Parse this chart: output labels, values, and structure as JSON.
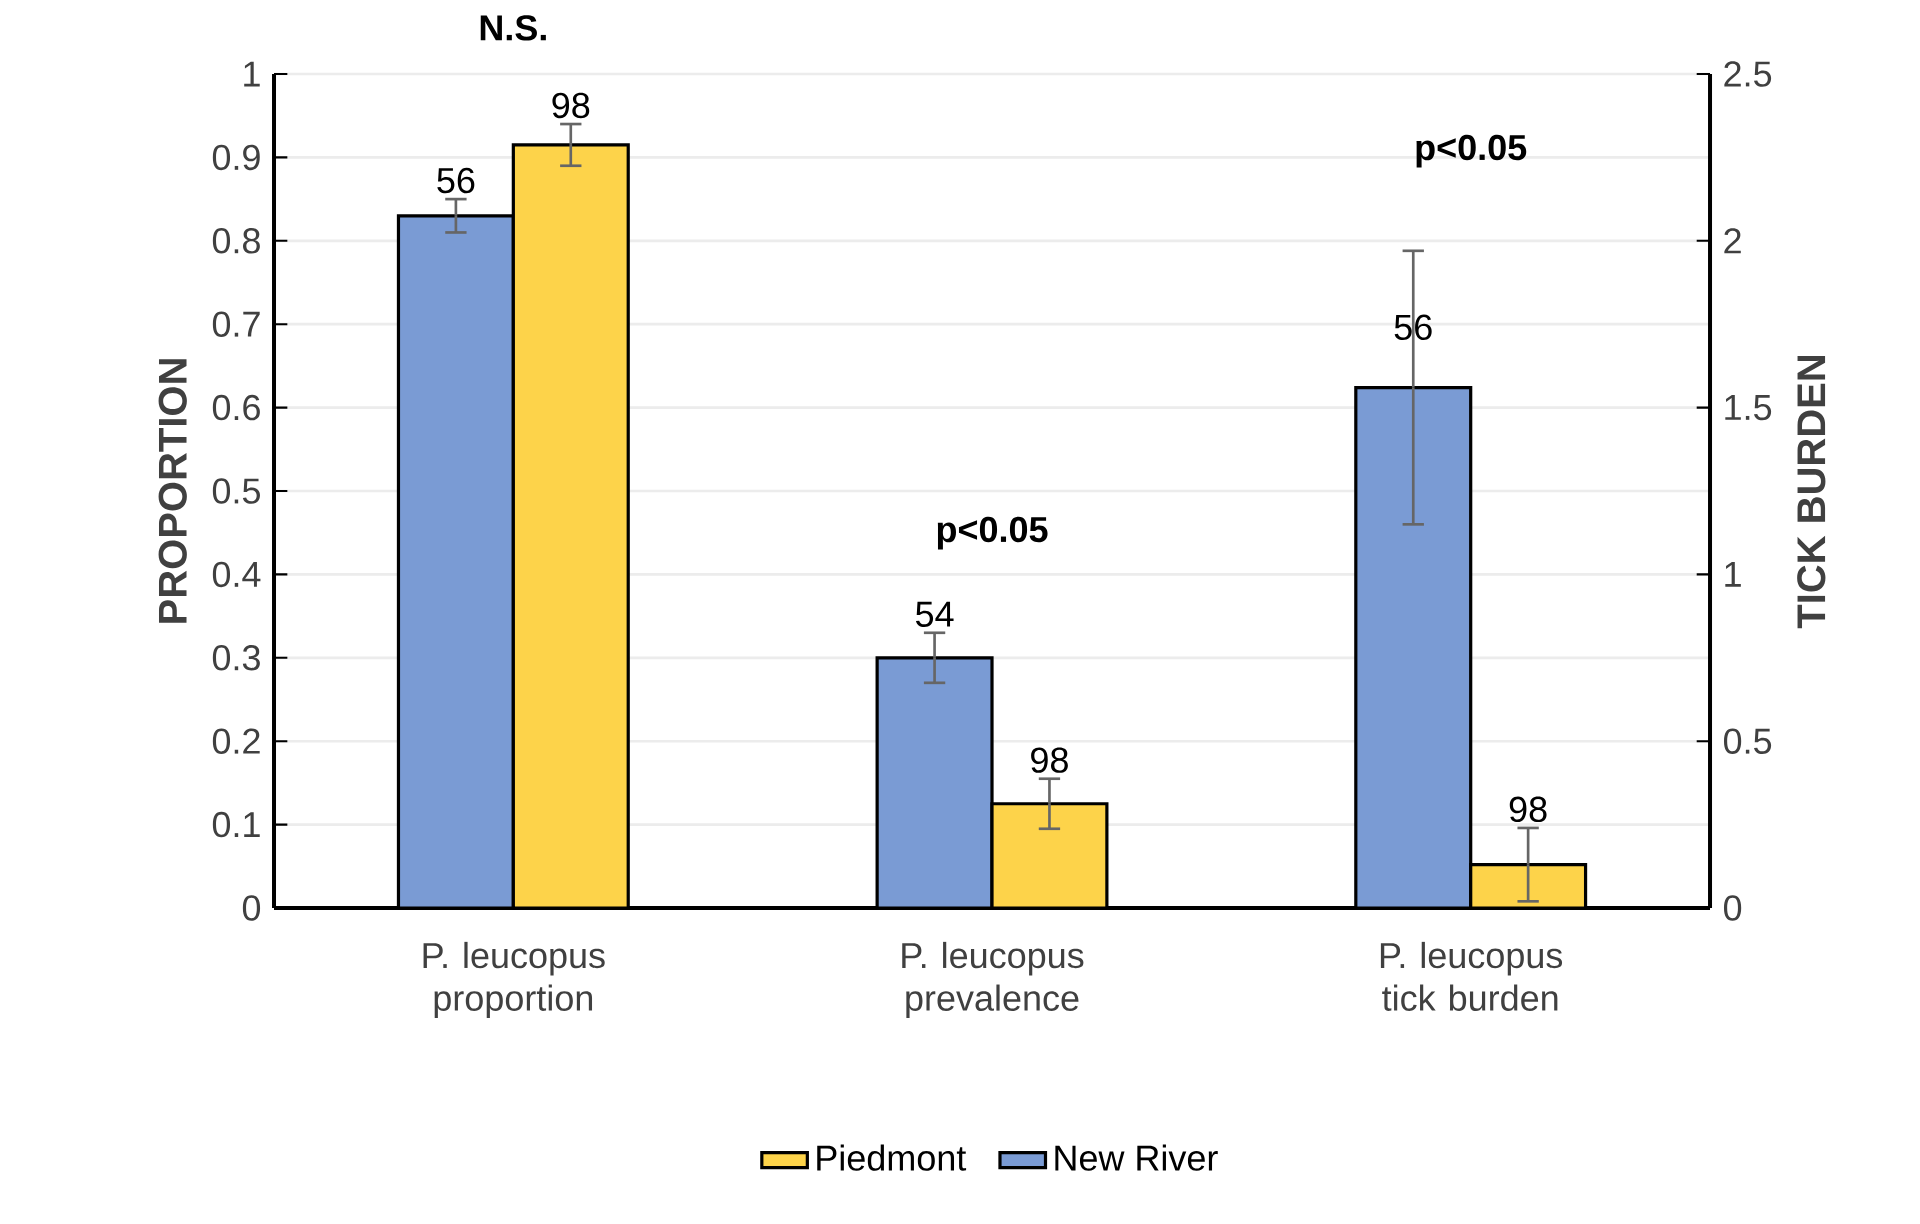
{
  "chart_data": {
    "type": "bar",
    "ylabel": "PROPORTION",
    "y2label": "TICK BURDEN",
    "categories": [
      "P. leucopus proportion",
      "P. leucopus prevalence",
      "P. leucopus tick burden"
    ],
    "series": [
      {
        "name": "New River",
        "color": "#7a9bd4",
        "values": [
          0.83,
          0.3,
          null
        ],
        "errors": [
          0.02,
          0.03,
          null
        ]
      },
      {
        "name": "Piedmont",
        "color": "#fdd34a",
        "values": [
          0.915,
          0.125,
          null
        ],
        "errors": [
          0.025,
          0.03,
          null
        ]
      },
      {
        "color": "#7a9bd4",
        "axis": "y2",
        "values": [
          null,
          null,
          1.56
        ],
        "errors": [
          null,
          null,
          0.41
        ]
      },
      {
        "color": "#fdd34a",
        "axis": "y2",
        "values": [
          null,
          null,
          0.13
        ],
        "errors": [
          null,
          null,
          0.11
        ]
      }
    ],
    "ylim": [
      0,
      1
    ],
    "yticks": [
      0,
      0.1,
      0.2,
      0.3,
      0.4,
      0.5,
      0.6,
      0.7,
      0.8,
      0.9,
      1
    ],
    "y2lim": [
      0,
      2.5
    ],
    "y2ticks": [
      0,
      0.5,
      1,
      1.5,
      2,
      2.5
    ],
    "grid": "y",
    "legend": "bottom",
    "annotations": [
      "N.S.",
      "p<0.05",
      "p<0.05",
      {
        "text": "56",
        "x": "P. leucopus proportion",
        "y": 0.83
      },
      {
        "text": "98",
        "x": "P. leucopus proportion",
        "y": 0.915
      },
      {
        "text": "54",
        "x": "P. leucopus prevalence",
        "y": 0.3
      },
      {
        "text": "98",
        "x": "P. leucopus prevalence",
        "y": 0.125
      },
      {
        "text": "56",
        "x": "P. leucopus tick burden",
        "y": 0.624
      },
      {
        "text": "98",
        "x": "P. leucopus tick burden",
        "y": 0.052
      }
    ]
  }
}
